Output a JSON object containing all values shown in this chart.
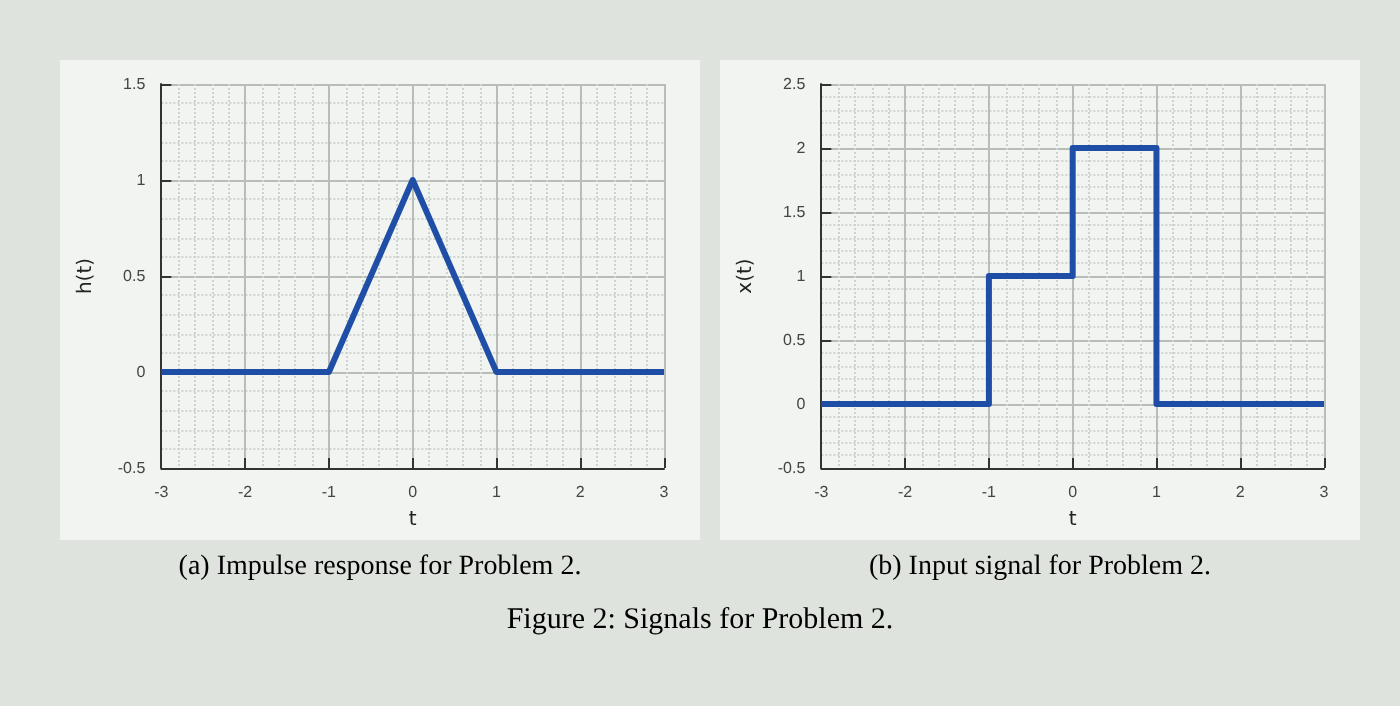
{
  "chart_data": [
    {
      "type": "line",
      "xlabel": "t",
      "ylabel": "h(t)",
      "x": [
        -3,
        -1,
        0,
        1,
        3
      ],
      "series": [
        {
          "color": "#1f4ea6",
          "values": [
            0,
            0,
            1,
            0,
            0
          ]
        }
      ],
      "xlim": [
        -3,
        3
      ],
      "xticks": [
        -3,
        -2,
        -1,
        0,
        1,
        2,
        3
      ],
      "ylim": [
        -0.5,
        1.5
      ],
      "yticks": [
        -0.5,
        0,
        0.5,
        1,
        1.5
      ],
      "grid": true,
      "annotations": [
        "(a) Impulse response for Problem 2."
      ]
    },
    {
      "type": "step",
      "xlabel": "t",
      "ylabel": "x(t)",
      "x": [
        -3,
        -1,
        0,
        1,
        3
      ],
      "series": [
        {
          "color": "#1f4ea6",
          "values": [
            0,
            1,
            2,
            0,
            0
          ]
        }
      ],
      "xlim": [
        -3,
        3
      ],
      "xticks": [
        -3,
        -2,
        -1,
        0,
        1,
        2,
        3
      ],
      "ylim": [
        -0.5,
        2.5
      ],
      "yticks": [
        -0.5,
        0,
        0.5,
        1,
        1.5,
        2,
        2.5
      ],
      "grid": true,
      "annotations": [
        "(b) Input signal for Problem 2.",
        "Figure 2: Signals for Problem 2."
      ]
    }
  ]
}
